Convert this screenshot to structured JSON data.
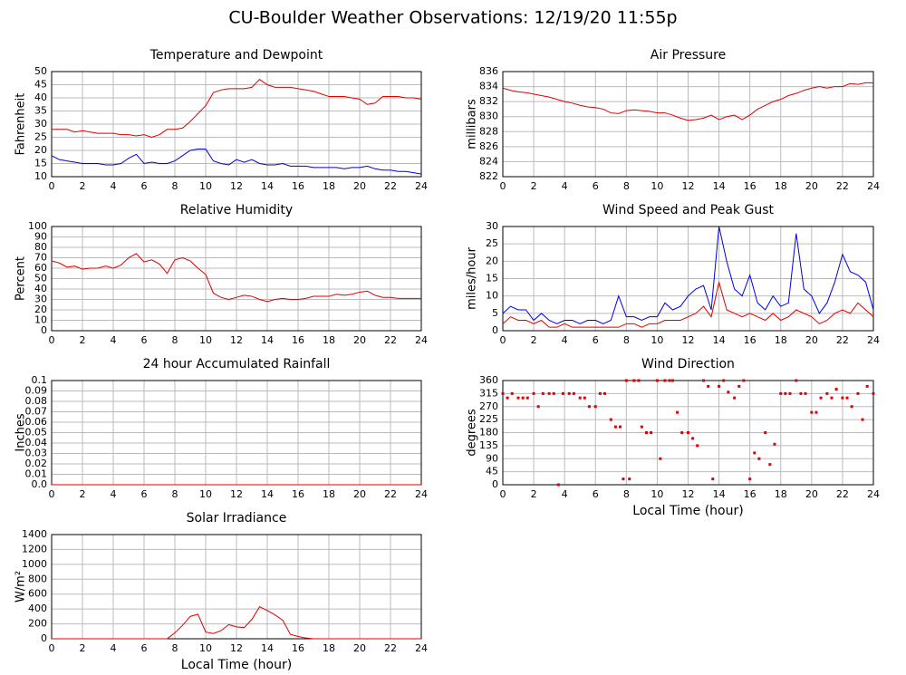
{
  "title": "CU-Boulder Weather Observations: 12/19/20 11:55p",
  "chart_data": [
    {
      "type": "line",
      "title": "Temperature and Dewpoint",
      "y_label": "Fahrenheit",
      "x": [
        0,
        0.5,
        1,
        1.5,
        2,
        2.5,
        3,
        3.5,
        4,
        4.5,
        5,
        5.5,
        6,
        6.5,
        7,
        7.5,
        8,
        8.5,
        9,
        9.5,
        10,
        10.5,
        11,
        11.5,
        12,
        12.5,
        13,
        13.5,
        14,
        14.5,
        15,
        15.5,
        16,
        16.5,
        17,
        17.5,
        18,
        18.5,
        19,
        19.5,
        20,
        20.5,
        21,
        21.5,
        22,
        22.5,
        23,
        23.5,
        24
      ],
      "series": [
        {
          "color": "#e00000",
          "values": [
            28,
            28,
            28,
            27,
            27.5,
            27,
            26.5,
            26.5,
            26.5,
            26,
            26,
            25.5,
            26,
            25,
            26,
            28,
            28,
            28.5,
            31,
            34,
            37,
            42,
            43,
            43.5,
            43.5,
            43.5,
            44,
            47,
            45,
            44,
            44,
            44,
            43.5,
            43,
            42.5,
            41.5,
            40.5,
            40.5,
            40.5,
            40,
            39.5,
            37.5,
            38,
            40.5,
            40.5,
            40.5,
            40,
            40,
            39.5
          ]
        },
        {
          "color": "#0000e0",
          "values": [
            18,
            16.5,
            16,
            15.5,
            15,
            15,
            15,
            14.5,
            14.5,
            15,
            17,
            18.5,
            15,
            15.5,
            15,
            15,
            16,
            18,
            20,
            20.5,
            20.5,
            16,
            15,
            14.5,
            16.5,
            15.5,
            16.5,
            15,
            14.5,
            14.5,
            15,
            14,
            14,
            14,
            13.5,
            13.5,
            13.5,
            13.5,
            13,
            13.5,
            13.5,
            14,
            13,
            12.5,
            12.5,
            12,
            12,
            11.5,
            11
          ]
        }
      ],
      "xlim": [
        0,
        24
      ],
      "xticks": [
        0,
        2,
        4,
        6,
        8,
        10,
        12,
        14,
        16,
        18,
        20,
        22,
        24
      ],
      "ylim": [
        10,
        50
      ],
      "yticks": [
        10,
        15,
        20,
        25,
        30,
        35,
        40,
        45,
        50
      ],
      "grid": true
    },
    {
      "type": "line",
      "title": "Air Pressure",
      "y_label": "millibars",
      "x": [
        0,
        0.5,
        1,
        1.5,
        2,
        2.5,
        3,
        3.5,
        4,
        4.5,
        5,
        5.5,
        6,
        6.5,
        7,
        7.5,
        8,
        8.5,
        9,
        9.5,
        10,
        10.5,
        11,
        11.5,
        12,
        12.5,
        13,
        13.5,
        14,
        14.5,
        15,
        15.5,
        16,
        16.5,
        17,
        17.5,
        18,
        18.5,
        19,
        19.5,
        20,
        20.5,
        21,
        21.5,
        22,
        22.5,
        23,
        23.5,
        24
      ],
      "series": [
        {
          "color": "#e00000",
          "values": [
            833.8,
            833.5,
            833.3,
            833.2,
            833,
            832.8,
            832.6,
            832.3,
            832,
            831.8,
            831.5,
            831.3,
            831.2,
            831,
            830.5,
            830.4,
            830.8,
            830.9,
            830.8,
            830.7,
            830.5,
            830.5,
            830.2,
            829.8,
            829.5,
            829.6,
            829.8,
            830.2,
            829.6,
            830,
            830.2,
            829.6,
            830.2,
            831,
            831.5,
            832,
            832.3,
            832.8,
            833.1,
            833.5,
            833.8,
            834,
            833.8,
            834,
            834,
            834.4,
            834.3,
            834.5,
            834.5
          ]
        }
      ],
      "xlim": [
        0,
        24
      ],
      "xticks": [
        0,
        2,
        4,
        6,
        8,
        10,
        12,
        14,
        16,
        18,
        20,
        22,
        24
      ],
      "ylim": [
        822,
        836
      ],
      "yticks": [
        822,
        824,
        826,
        828,
        830,
        832,
        834,
        836
      ],
      "grid": true
    },
    {
      "type": "line",
      "title": "Relative Humidity",
      "y_label": "Percent",
      "x": [
        0,
        0.5,
        1,
        1.5,
        2,
        2.5,
        3,
        3.5,
        4,
        4.5,
        5,
        5.5,
        6,
        6.5,
        7,
        7.5,
        8,
        8.5,
        9,
        9.5,
        10,
        10.5,
        11,
        11.5,
        12,
        12.5,
        13,
        13.5,
        14,
        14.5,
        15,
        15.5,
        16,
        16.5,
        17,
        17.5,
        18,
        18.5,
        19,
        19.5,
        20,
        20.5,
        21,
        21.5,
        22,
        22.5,
        23,
        23.5,
        24
      ],
      "series": [
        {
          "color": "#e00000",
          "values": [
            67,
            65,
            61,
            62,
            59,
            60,
            60,
            62,
            60,
            63,
            70,
            74,
            66,
            68,
            64,
            55,
            68,
            70,
            67,
            60,
            54,
            36,
            32,
            30,
            32,
            34,
            33,
            30,
            28,
            30,
            31,
            30,
            30,
            31,
            33,
            33,
            33,
            35,
            34,
            35,
            37,
            38,
            34,
            32,
            32,
            31,
            31,
            31,
            31
          ]
        }
      ],
      "xlim": [
        0,
        24
      ],
      "xticks": [
        0,
        2,
        4,
        6,
        8,
        10,
        12,
        14,
        16,
        18,
        20,
        22,
        24
      ],
      "ylim": [
        0,
        100
      ],
      "yticks": [
        0,
        10,
        20,
        30,
        40,
        50,
        60,
        70,
        80,
        90,
        100
      ],
      "grid": true
    },
    {
      "type": "line",
      "title": "Wind Speed and Peak Gust",
      "y_label": "miles/hour",
      "x": [
        0,
        0.5,
        1,
        1.5,
        2,
        2.5,
        3,
        3.5,
        4,
        4.5,
        5,
        5.5,
        6,
        6.5,
        7,
        7.5,
        8,
        8.5,
        9,
        9.5,
        10,
        10.5,
        11,
        11.5,
        12,
        12.5,
        13,
        13.5,
        14,
        14.5,
        15,
        15.5,
        16,
        16.5,
        17,
        17.5,
        18,
        18.5,
        19,
        19.5,
        20,
        20.5,
        21,
        21.5,
        22,
        22.5,
        23,
        23.5,
        24
      ],
      "series": [
        {
          "color": "#0000e0",
          "values": [
            5,
            7,
            6,
            6,
            3,
            5,
            3,
            2,
            3,
            3,
            2,
            3,
            3,
            2,
            3,
            10,
            4,
            4,
            3,
            4,
            4,
            8,
            6,
            7,
            10,
            12,
            13,
            6,
            30,
            20,
            12,
            10,
            16,
            8,
            6,
            10,
            7,
            8,
            28,
            12,
            10,
            5,
            8,
            14,
            22,
            17,
            16,
            14,
            6
          ]
        },
        {
          "color": "#e00000",
          "values": [
            2,
            4,
            3,
            3,
            2,
            3,
            1,
            1,
            2,
            1,
            1,
            1,
            1,
            1,
            1,
            1,
            2,
            2,
            1,
            2,
            2,
            3,
            3,
            3,
            4,
            5,
            7,
            4,
            14,
            6,
            5,
            4,
            5,
            4,
            3,
            5,
            3,
            4,
            6,
            5,
            4,
            2,
            3,
            5,
            6,
            5,
            8,
            6,
            4
          ]
        }
      ],
      "xlim": [
        0,
        24
      ],
      "xticks": [
        0,
        2,
        4,
        6,
        8,
        10,
        12,
        14,
        16,
        18,
        20,
        22,
        24
      ],
      "ylim": [
        0,
        30
      ],
      "yticks": [
        0,
        5,
        10,
        15,
        20,
        25,
        30
      ],
      "grid": true
    },
    {
      "type": "line",
      "title": "24 hour Accumulated Rainfall",
      "y_label": "Inches",
      "x": [
        0,
        24
      ],
      "series": [
        {
          "color": "#e00000",
          "values": [
            0,
            0
          ]
        }
      ],
      "xlim": [
        0,
        24
      ],
      "xticks": [
        0,
        2,
        4,
        6,
        8,
        10,
        12,
        14,
        16,
        18,
        20,
        22,
        24
      ],
      "ylim": [
        0,
        0.1
      ],
      "yticks": [
        {
          "value": 0,
          "label": "0.0"
        },
        0.01,
        0.02,
        0.03,
        0.04,
        0.05,
        0.06,
        0.07,
        0.08,
        0.09,
        0.1
      ],
      "grid": true
    },
    {
      "type": "scatter",
      "title": "Wind Direction",
      "y_label": "degrees",
      "x_label": "Local Time (hour)",
      "x": [
        0,
        0.3,
        0.6,
        1,
        1.3,
        1.6,
        2,
        2.3,
        2.6,
        3,
        3.3,
        3.6,
        3.9,
        4.3,
        4.6,
        5,
        5.3,
        5.6,
        6,
        6.3,
        6.6,
        7,
        7.3,
        7.6,
        7.8,
        8,
        8.2,
        8.5,
        8.8,
        9,
        9.3,
        9.6,
        10,
        10.2,
        10.5,
        10.8,
        11,
        11.3,
        11.6,
        12,
        12.3,
        12.6,
        13,
        13.3,
        13.6,
        14,
        14.3,
        14.6,
        15,
        15.3,
        15.6,
        16,
        16.3,
        16.6,
        17,
        17.3,
        17.6,
        18,
        18.3,
        18.6,
        19,
        19.3,
        19.6,
        20,
        20.3,
        20.6,
        21,
        21.3,
        21.6,
        22,
        22.3,
        22.6,
        23,
        23.3,
        23.6,
        24
      ],
      "series": [
        {
          "color": "#e00000",
          "values": [
            315,
            300,
            315,
            300,
            300,
            300,
            315,
            270,
            315,
            315,
            315,
            0,
            315,
            315,
            315,
            300,
            300,
            270,
            270,
            315,
            315,
            225,
            200,
            200,
            20,
            360,
            20,
            360,
            360,
            200,
            180,
            180,
            360,
            90,
            360,
            360,
            360,
            250,
            180,
            180,
            160,
            135,
            360,
            340,
            20,
            340,
            360,
            320,
            300,
            340,
            360,
            20,
            110,
            90,
            180,
            70,
            140,
            315,
            315,
            315,
            360,
            315,
            315,
            250,
            250,
            300,
            315,
            300,
            330,
            300,
            300,
            270,
            315,
            225,
            340,
            315
          ]
        }
      ],
      "xlim": [
        0,
        24
      ],
      "xticks": [
        0,
        2,
        4,
        6,
        8,
        10,
        12,
        14,
        16,
        18,
        20,
        22,
        24
      ],
      "ylim": [
        0,
        360
      ],
      "yticks": [
        0,
        45,
        90,
        135,
        180,
        225,
        270,
        315,
        360
      ],
      "grid": true
    },
    {
      "type": "line",
      "title": "Solar Irradiance",
      "y_label": "W/m²",
      "x_label": "Local Time (hour)",
      "x": [
        0,
        0.5,
        1,
        1.5,
        2,
        2.5,
        3,
        3.5,
        4,
        4.5,
        5,
        5.5,
        6,
        6.5,
        7,
        7.5,
        8,
        8.5,
        9,
        9.5,
        10,
        10.5,
        11,
        11.5,
        12,
        12.5,
        13,
        13.5,
        14,
        14.5,
        15,
        15.5,
        16,
        16.5,
        17,
        17.5,
        18,
        18.5,
        19,
        19.5,
        20,
        20.5,
        21,
        21.5,
        22,
        22.5,
        23,
        23.5,
        24
      ],
      "series": [
        {
          "color": "#e00000",
          "values": [
            0,
            0,
            0,
            0,
            0,
            0,
            0,
            0,
            0,
            0,
            0,
            0,
            0,
            0,
            0,
            0,
            80,
            180,
            300,
            330,
            90,
            70,
            110,
            190,
            160,
            150,
            260,
            430,
            380,
            320,
            250,
            60,
            30,
            10,
            0,
            0,
            0,
            0,
            0,
            0,
            0,
            0,
            0,
            0,
            0,
            0,
            0,
            0,
            0
          ]
        }
      ],
      "xlim": [
        0,
        24
      ],
      "xticks": [
        0,
        2,
        4,
        6,
        8,
        10,
        12,
        14,
        16,
        18,
        20,
        22,
        24
      ],
      "ylim": [
        0,
        1400
      ],
      "yticks": [
        0,
        200,
        400,
        600,
        800,
        1000,
        1200,
        1400
      ],
      "grid": true
    }
  ]
}
